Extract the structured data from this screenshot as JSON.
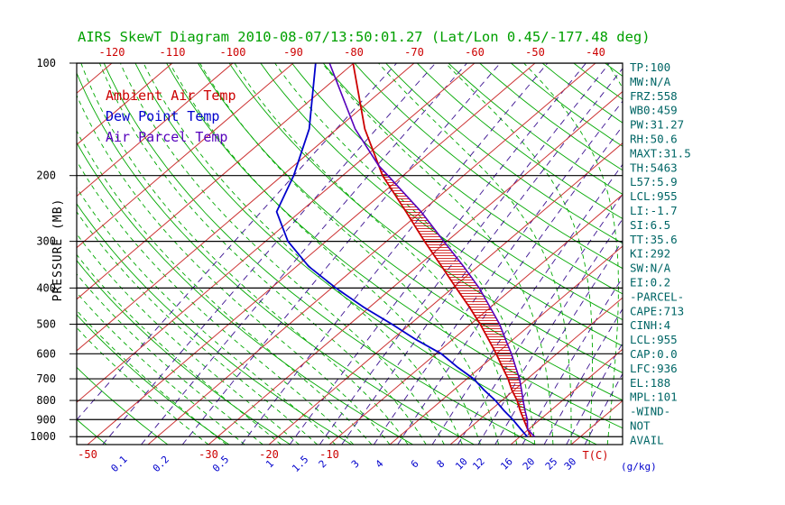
{
  "title": "AIRS SkewT Diagram 2010-08-07/13:50:01.27 (Lat/Lon 0.45/-177.48 deg)",
  "legend": {
    "ambient_label": "Ambient Air Temp",
    "dewpoint_label": "Dew Point Temp",
    "parcel_label": "Air Parcel Temp"
  },
  "stats_panel": {
    "lines": [
      "TP:100",
      "MW:N/A",
      "FRZ:558",
      "WB0:459",
      "PW:31.27",
      "RH:50.6",
      "MAXT:31.5",
      "TH:5463",
      "L57:5.9",
      "LCL:955",
      "LI:-1.7",
      "SI:6.5",
      "TT:35.6",
      "KI:292",
      "SW:N/A",
      "EI:0.2",
      "-PARCEL-",
      "CAPE:713",
      "CINH:4",
      "LCL:955",
      "CAP:0.0",
      "LFC:936",
      "EL:188",
      "MPL:101",
      "-WIND-",
      "NOT",
      "AVAIL"
    ]
  },
  "colors": {
    "title_green": "#00a000",
    "stats_teal": "#006666",
    "ambient_red": "#cc0000",
    "dewpoint_blue": "#0000cc",
    "parcel_purple": "#5500bb",
    "isotherm_red": "#cc3333",
    "adiabat_green": "#00a800",
    "mixing_ratio_violet": "#3a1090",
    "isobar_black": "#000000"
  },
  "chart_data": {
    "type": "line",
    "variant": "skew-t-log-p",
    "title": "AIRS SkewT Diagram 2010-08-07/13:50:01.27 (Lat/Lon 0.45/-177.48 deg)",
    "pressure_axis": {
      "label": "PRESSURE (MB)",
      "scale": "log",
      "range_mb": [
        100,
        1050
      ],
      "ticks_mb": [
        100,
        200,
        300,
        400,
        500,
        600,
        700,
        800,
        900,
        1000
      ]
    },
    "temperature_axis": {
      "unit_label": "T(C)",
      "surface_range_c": [
        -50,
        40
      ],
      "bottom_ticks_c": [
        -50,
        -30,
        -20,
        -10
      ],
      "top_ticks_c": [
        -120,
        -110,
        -100,
        -90,
        -80,
        -70,
        -60,
        -50,
        -40
      ]
    },
    "mixing_ratio_axis": {
      "unit_label": "(g/kg)",
      "ticks_gkg": [
        0.1,
        0.2,
        0.5,
        1,
        1.5,
        2,
        3,
        4,
        6,
        8,
        10,
        12,
        16,
        20,
        25,
        30
      ]
    },
    "grid": {
      "isobars_mb": [
        100,
        200,
        300,
        400,
        500,
        600,
        700,
        800,
        900,
        1000
      ],
      "isotherm_range_c": [
        -130,
        40
      ],
      "isotherm_step_c": 10,
      "dry_adiabat_theta_c": {
        "min": -60,
        "max": 180,
        "step": 10
      },
      "moist_adiabat_surface_temp_c": {
        "min": -30,
        "max": 42,
        "step": 3
      },
      "mixing_ratio_lines_gkg": [
        0.02,
        0.05,
        0.1,
        0.2,
        0.5,
        1,
        1.5,
        2,
        3,
        4,
        6,
        8,
        10,
        12,
        16,
        20,
        25,
        30
      ]
    },
    "cape_hatch_between_mb": [
      936,
      188
    ],
    "series": [
      {
        "name": "Ambient Air Temp",
        "color_key": "ambient_red",
        "points_p_t": [
          [
            1000,
            21.8
          ],
          [
            950,
            19.6
          ],
          [
            900,
            17.3
          ],
          [
            850,
            14.9
          ],
          [
            800,
            12.5
          ],
          [
            750,
            9.6
          ],
          [
            700,
            6.8
          ],
          [
            650,
            3.5
          ],
          [
            600,
            0.0
          ],
          [
            550,
            -4.0
          ],
          [
            500,
            -8.4
          ],
          [
            450,
            -13.5
          ],
          [
            400,
            -19.4
          ],
          [
            350,
            -26.0
          ],
          [
            300,
            -33.7
          ],
          [
            250,
            -42.5
          ],
          [
            200,
            -53.4
          ],
          [
            150,
            -65.4
          ],
          [
            100,
            -80.1
          ]
        ]
      },
      {
        "name": "Dew Point Temp",
        "color_key": "dewpoint_blue",
        "points_p_t": [
          [
            1000,
            21.2
          ],
          [
            950,
            18.4
          ],
          [
            900,
            15.5
          ],
          [
            850,
            12.2
          ],
          [
            800,
            8.9
          ],
          [
            750,
            5.0
          ],
          [
            700,
            1.1
          ],
          [
            650,
            -4.0
          ],
          [
            600,
            -9.1
          ],
          [
            550,
            -16.0
          ],
          [
            500,
            -23.0
          ],
          [
            450,
            -31.0
          ],
          [
            400,
            -39.3
          ],
          [
            350,
            -48.0
          ],
          [
            300,
            -56.3
          ],
          [
            250,
            -63.9
          ],
          [
            200,
            -68.1
          ],
          [
            150,
            -74.6
          ],
          [
            100,
            -86.3
          ]
        ]
      },
      {
        "name": "Air Parcel Temp",
        "color_key": "parcel_purple",
        "points_p_t": [
          [
            1000,
            22.4
          ],
          [
            955,
            19.8
          ],
          [
            900,
            17.9
          ],
          [
            850,
            15.7
          ],
          [
            800,
            13.5
          ],
          [
            750,
            11.2
          ],
          [
            700,
            8.7
          ],
          [
            650,
            5.7
          ],
          [
            600,
            2.5
          ],
          [
            550,
            -1.2
          ],
          [
            500,
            -5.2
          ],
          [
            450,
            -10.1
          ],
          [
            400,
            -15.6
          ],
          [
            350,
            -22.4
          ],
          [
            300,
            -30.5
          ],
          [
            250,
            -40.0
          ],
          [
            200,
            -52.5
          ],
          [
            188,
            -56.0
          ],
          [
            150,
            -67.0
          ],
          [
            100,
            -84.0
          ]
        ]
      }
    ]
  }
}
